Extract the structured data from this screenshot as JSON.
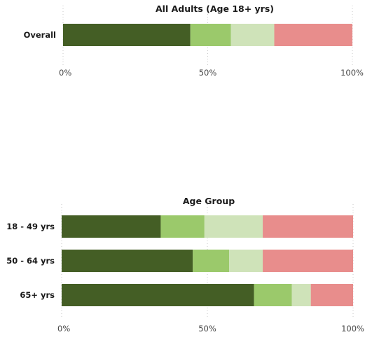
{
  "chart_data": [
    {
      "type": "bar",
      "orientation": "horizontal",
      "stacked": true,
      "title": "All Adults (Age 18+ yrs)",
      "categories": [
        "Overall"
      ],
      "series": [
        {
          "color": "#445e25",
          "values": [
            44
          ]
        },
        {
          "color": "#9bc96b",
          "values": [
            14
          ]
        },
        {
          "color": "#cfe3b9",
          "values": [
            15
          ]
        },
        {
          "color": "#e88d8c",
          "values": [
            27
          ]
        }
      ],
      "xlim": [
        0,
        100
      ],
      "xticks": [
        "0%",
        "50%",
        "100%"
      ],
      "grid": "vertical dotted"
    },
    {
      "type": "bar",
      "orientation": "horizontal",
      "stacked": true,
      "title": "Age Group",
      "categories": [
        "18 - 49 yrs",
        "50 - 64 yrs",
        "65+ yrs"
      ],
      "series": [
        {
          "color": "#445e25",
          "values": [
            34,
            45,
            66
          ]
        },
        {
          "color": "#9bc96b",
          "values": [
            15,
            12.5,
            13
          ]
        },
        {
          "color": "#cfe3b9",
          "values": [
            20,
            11.5,
            6.5
          ]
        },
        {
          "color": "#e88d8c",
          "values": [
            31,
            31,
            14.5
          ]
        }
      ],
      "xlim": [
        0,
        100
      ],
      "xticks": [
        "0%",
        "50%",
        "100%"
      ],
      "grid": "vertical dotted"
    }
  ]
}
